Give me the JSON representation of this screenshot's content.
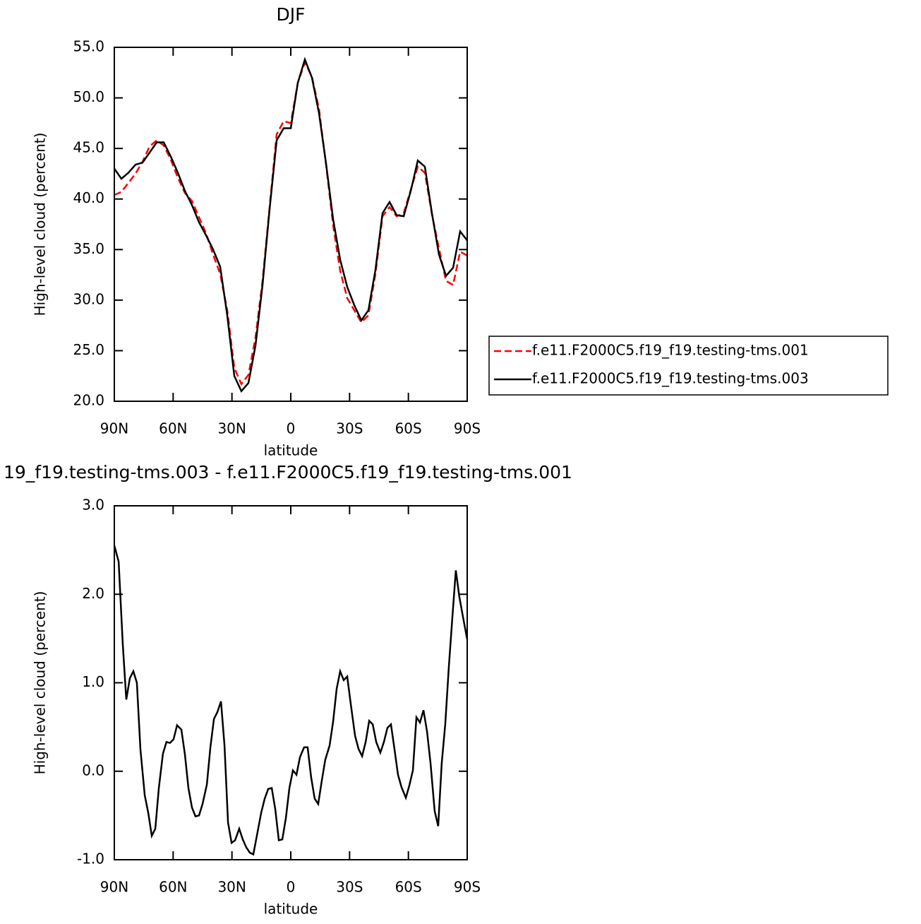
{
  "chart_data": [
    {
      "type": "line",
      "title": "DJF",
      "xlabel": "latitude",
      "ylabel": "High-level cloud (percent)",
      "xlim": [
        90,
        -90
      ],
      "xticks": [
        {
          "value": 90,
          "label": "90N"
        },
        {
          "value": 60,
          "label": "60N"
        },
        {
          "value": 30,
          "label": "30N"
        },
        0,
        {
          "value": -30,
          "label": "30S"
        },
        {
          "value": -60,
          "label": "60S"
        },
        {
          "value": -90,
          "label": "90S"
        }
      ],
      "ylim": [
        20,
        55
      ],
      "yticks": [
        {
          "value": 20,
          "label": "20.0"
        },
        {
          "value": 25,
          "label": "25.0"
        },
        {
          "value": 30,
          "label": "30.0"
        },
        {
          "value": 35,
          "label": "35.0"
        },
        {
          "value": 40,
          "label": "40.0"
        },
        {
          "value": 45,
          "label": "45.0"
        },
        {
          "value": 50,
          "label": "50.0"
        },
        {
          "value": 55,
          "label": "55.0"
        }
      ],
      "legend": "outside right",
      "x": [
        90,
        86.4,
        82.8,
        79.2,
        75.6,
        72,
        68.4,
        64.8,
        61.2,
        57.6,
        54,
        50.4,
        46.8,
        43.2,
        39.6,
        36,
        32.4,
        28.8,
        25.2,
        21.6,
        18,
        14.4,
        10.8,
        7.2,
        3.6,
        0,
        -3.6,
        -7.2,
        -10.8,
        -14.4,
        -18,
        -21.6,
        -25.2,
        -28.8,
        -32.4,
        -36,
        -39.6,
        -43.2,
        -46.8,
        -50.4,
        -54,
        -57.6,
        -61.2,
        -64.8,
        -68.4,
        -72,
        -75.6,
        -79.2,
        -82.8,
        -86.4,
        -90
      ],
      "series": [
        {
          "name": "f.e11.F2000C5.f19_f19.testing-tms.001",
          "color": "#ff0000",
          "line_style": "dashed",
          "values": [
            40.4,
            40.7,
            41.6,
            42.5,
            43.7,
            45.2,
            45.8,
            45.3,
            43.9,
            42.1,
            40.6,
            39.8,
            38.2,
            36.6,
            34.5,
            32.6,
            29.0,
            23.3,
            21.7,
            22.6,
            26.3,
            31.9,
            39.2,
            46.4,
            47.7,
            47.5,
            51.5,
            53.5,
            52.1,
            48.9,
            43.4,
            37.4,
            32.9,
            30.2,
            29.0,
            27.8,
            28.5,
            32.6,
            38.3,
            39.2,
            38.3,
            38.6,
            40.9,
            43.2,
            42.6,
            38.5,
            35.1,
            31.9,
            31.5,
            34.8,
            34.4
          ]
        },
        {
          "name": "f.e11.F2000C5.f19_f19.testing-tms.003",
          "color": "#000000",
          "line_style": "solid",
          "values": [
            43.0,
            42.0,
            42.6,
            43.4,
            43.6,
            44.6,
            45.6,
            45.6,
            44.2,
            42.6,
            40.8,
            39.4,
            37.7,
            36.4,
            35.0,
            33.3,
            28.5,
            22.5,
            21.0,
            21.8,
            25.5,
            31.5,
            39.0,
            45.8,
            47.0,
            47.0,
            51.5,
            53.8,
            52.0,
            48.5,
            43.5,
            38.0,
            34.0,
            31.3,
            29.5,
            28.0,
            29.0,
            33.0,
            38.6,
            39.7,
            38.4,
            38.3,
            40.8,
            43.8,
            43.2,
            38.6,
            34.5,
            32.4,
            33.2,
            36.8,
            35.9
          ]
        }
      ]
    },
    {
      "type": "line",
      "title": "19_f19.testing-tms.003 - f.e11.F2000C5.f19_f19.testing-tms.001",
      "xlabel": "latitude",
      "ylabel": "High-level cloud (percent)",
      "xlim": [
        90,
        -90
      ],
      "xticks": [
        {
          "value": 90,
          "label": "90N"
        },
        {
          "value": 60,
          "label": "60N"
        },
        {
          "value": 30,
          "label": "30N"
        },
        0,
        {
          "value": -30,
          "label": "30S"
        },
        {
          "value": -60,
          "label": "60S"
        },
        {
          "value": -90,
          "label": "90S"
        }
      ],
      "ylim": [
        -1,
        3
      ],
      "yticks": [
        {
          "value": -1,
          "label": "-1.0"
        },
        {
          "value": 0,
          "label": "0.0"
        },
        {
          "value": 1,
          "label": "1.0"
        },
        {
          "value": 2,
          "label": "2.0"
        },
        {
          "value": 3,
          "label": "3.0"
        }
      ],
      "color": "#000000",
      "x": [
        90,
        87.8,
        85.7,
        83.9,
        82.1,
        80.3,
        78.5,
        76.7,
        74.5,
        72.7,
        70.9,
        69.1,
        67.3,
        65.2,
        63.4,
        61.6,
        59.8,
        58.0,
        55.8,
        54.0,
        52.2,
        50.4,
        48.6,
        46.8,
        45.0,
        42.8,
        41.0,
        39.2,
        37.4,
        35.6,
        33.8,
        32.0,
        30.2,
        28.4,
        26.3,
        24.5,
        22.7,
        20.9,
        19.1,
        17.3,
        15.1,
        13.3,
        11.5,
        9.7,
        7.9,
        6.1,
        4.3,
        2.5,
        0.7,
        -1.1,
        -2.9,
        -4.7,
        -6.8,
        -8.6,
        -10.4,
        -12.2,
        -14.0,
        -15.8,
        -17.6,
        -19.8,
        -21.6,
        -23.4,
        -25.2,
        -27.0,
        -28.8,
        -30.6,
        -32.8,
        -34.6,
        -36.4,
        -38.2,
        -40.0,
        -41.8,
        -43.6,
        -45.7,
        -47.5,
        -49.3,
        -51.1,
        -52.9,
        -54.7,
        -56.5,
        -58.7,
        -60.5,
        -62.3,
        -64.1,
        -65.9,
        -67.7,
        -69.5,
        -71.3,
        -73.4,
        -75.2,
        -77.0,
        -78.8,
        -80.6,
        -82.4,
        -84.2,
        -86.0,
        -87.8,
        -90
      ],
      "values": [
        2.55,
        2.37,
        1.44,
        0.81,
        1.05,
        1.13,
        1.0,
        0.25,
        -0.27,
        -0.47,
        -0.73,
        -0.65,
        -0.19,
        0.2,
        0.33,
        0.32,
        0.36,
        0.52,
        0.47,
        0.19,
        -0.19,
        -0.41,
        -0.51,
        -0.5,
        -0.37,
        -0.15,
        0.27,
        0.59,
        0.67,
        0.79,
        0.29,
        -0.58,
        -0.81,
        -0.78,
        -0.65,
        -0.77,
        -0.86,
        -0.92,
        -0.94,
        -0.73,
        -0.47,
        -0.31,
        -0.2,
        -0.19,
        -0.43,
        -0.78,
        -0.77,
        -0.53,
        -0.19,
        0.01,
        -0.04,
        0.16,
        0.27,
        0.27,
        -0.07,
        -0.31,
        -0.37,
        -0.11,
        0.13,
        0.29,
        0.56,
        0.93,
        1.13,
        1.03,
        1.07,
        0.76,
        0.4,
        0.25,
        0.17,
        0.33,
        0.57,
        0.53,
        0.33,
        0.21,
        0.33,
        0.49,
        0.53,
        0.25,
        -0.04,
        -0.18,
        -0.3,
        -0.16,
        0.01,
        0.61,
        0.55,
        0.69,
        0.45,
        0.09,
        -0.45,
        -0.62,
        0.09,
        0.53,
        1.17,
        1.73,
        2.27,
        1.97,
        1.75,
        1.49
      ]
    }
  ]
}
